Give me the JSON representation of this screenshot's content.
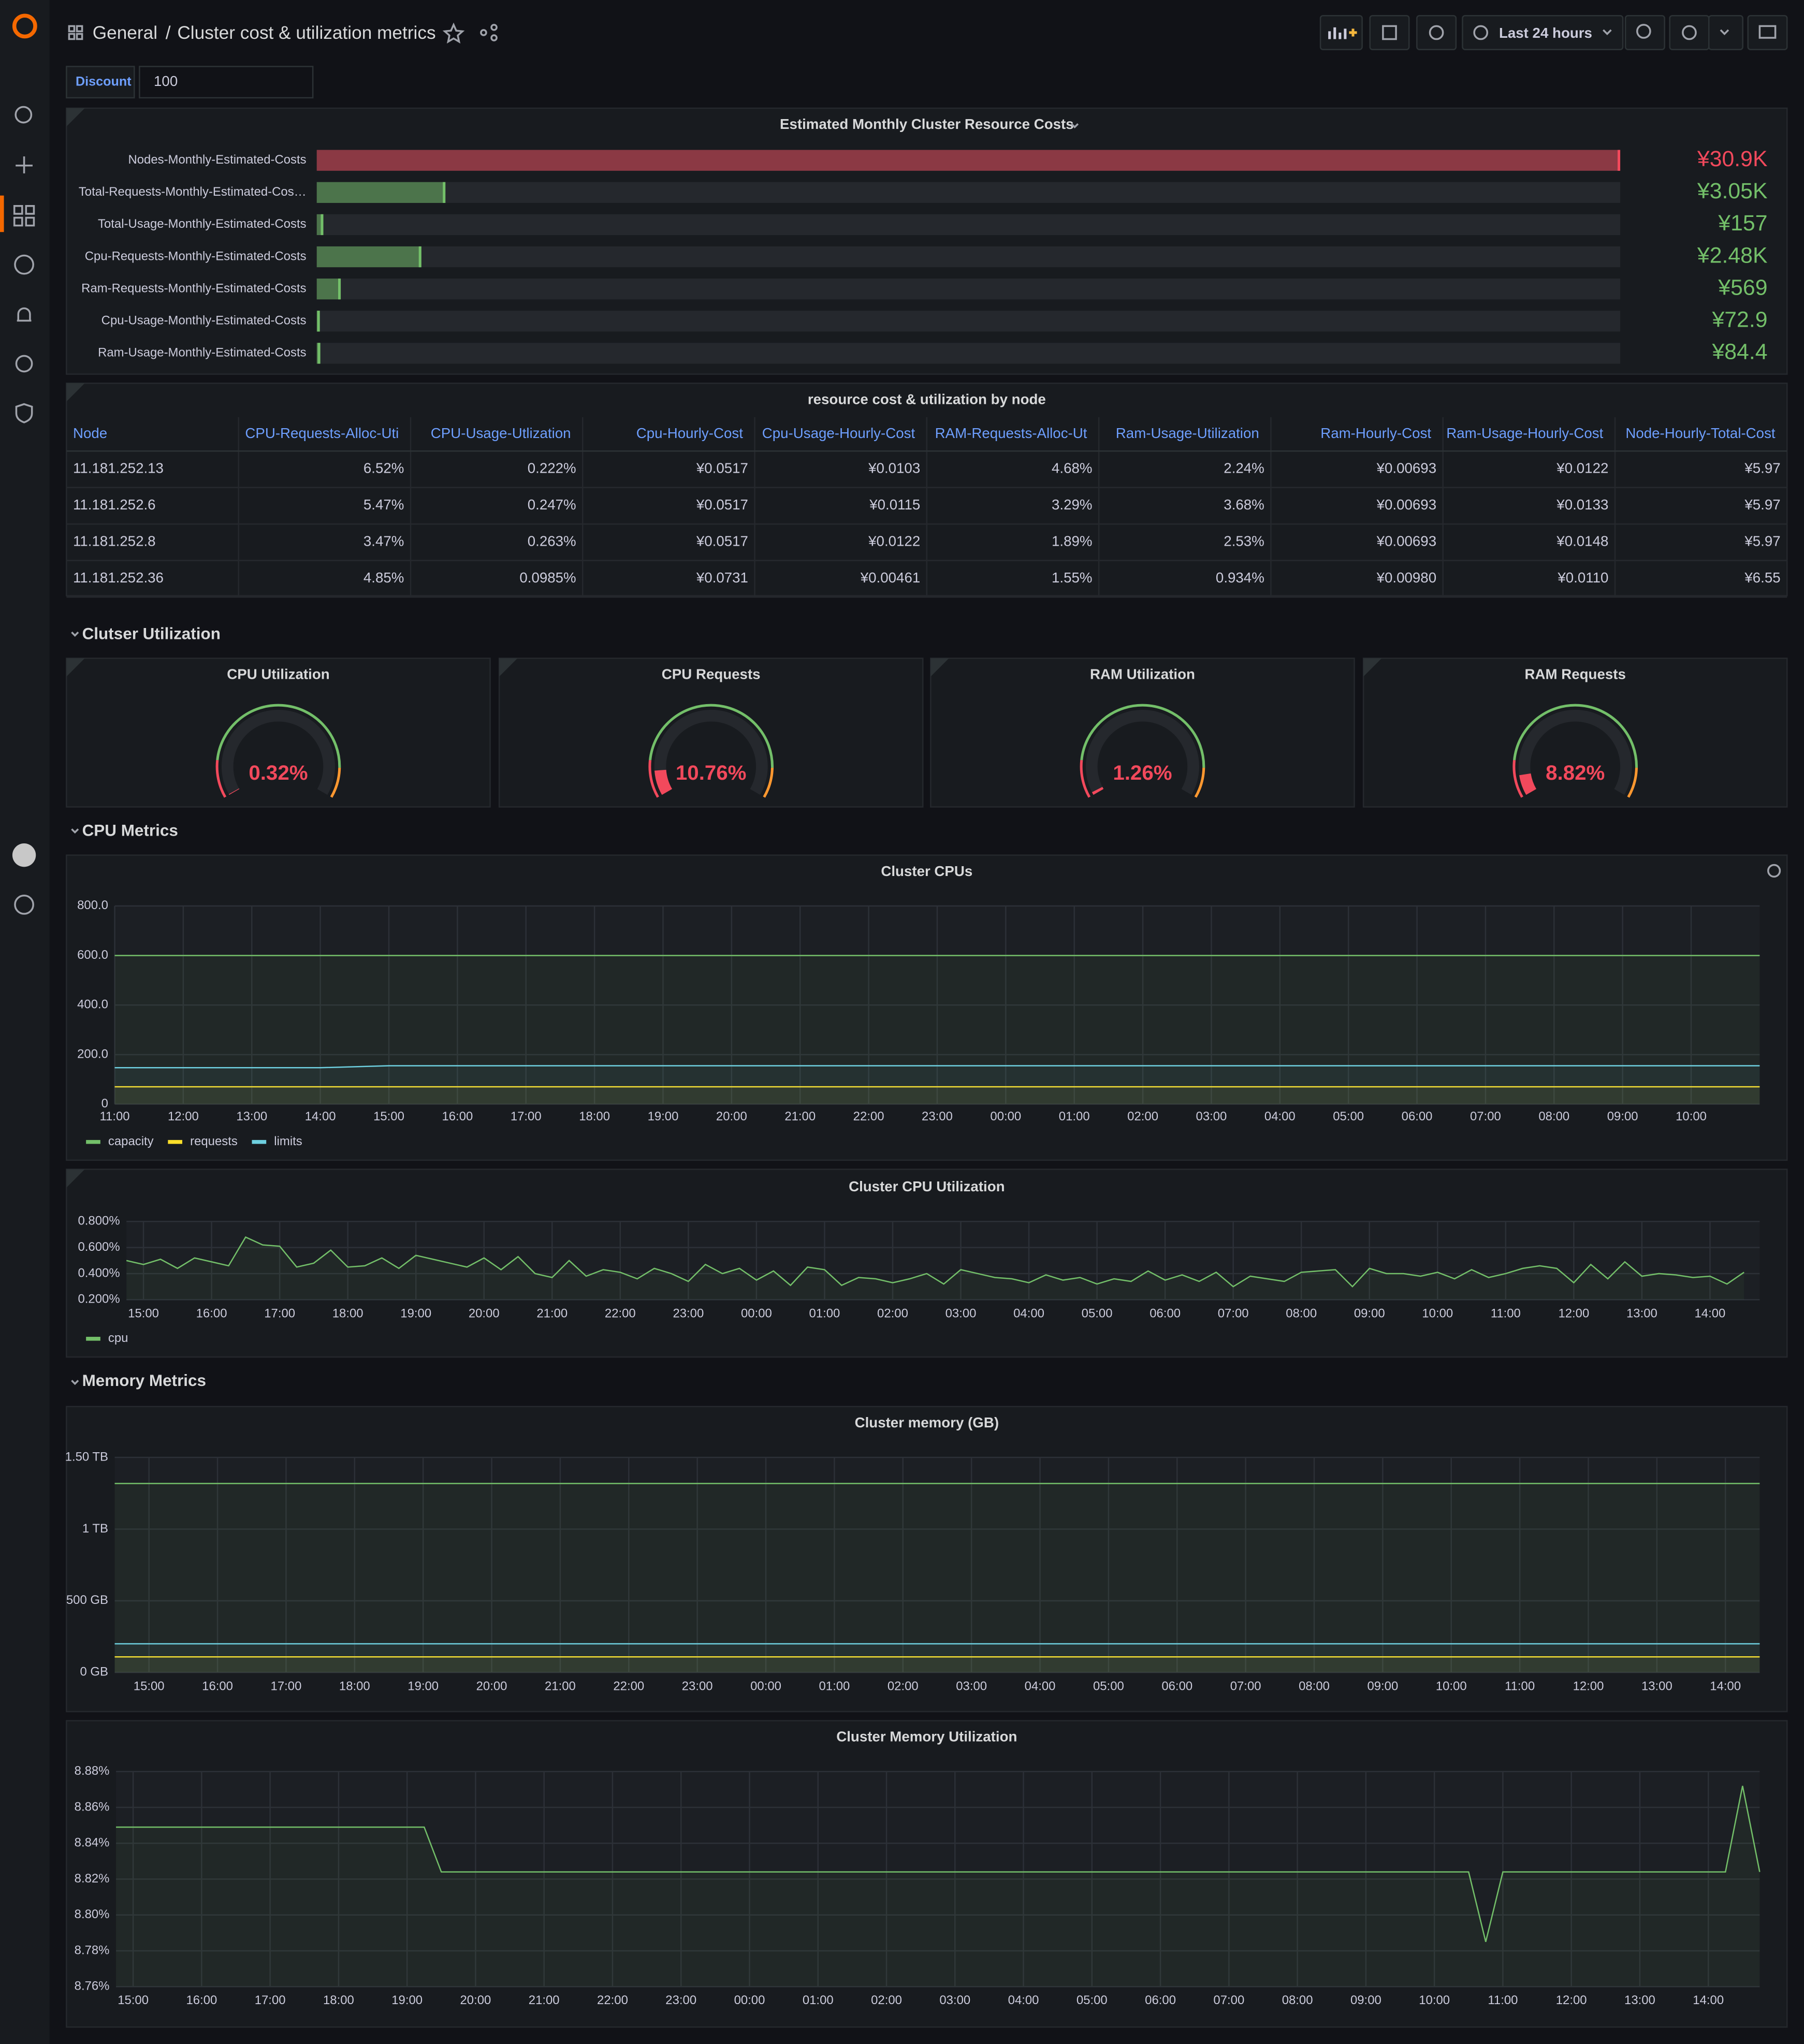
{
  "header": {
    "folder": "General",
    "title": "Cluster cost & utilization metrics",
    "time_range": "Last 24 hours"
  },
  "variable": {
    "label": "Discount",
    "value": "100"
  },
  "sections": [
    "Clutser Utilization",
    "CPU Metrics",
    "Memory Metrics"
  ],
  "table": {
    "title": "resource cost & utilization by node",
    "columns": [
      "Node",
      "CPU-Requests-Alloc-Uti",
      "CPU-Usage-Utlization",
      "Cpu-Hourly-Cost",
      "Cpu-Usage-Hourly-Cost",
      "RAM-Requests-Alloc-Ut",
      "Ram-Usage-Utilization",
      "Ram-Hourly-Cost",
      "Ram-Usage-Hourly-Cost",
      "Node-Hourly-Total-Cost"
    ],
    "rows": [
      [
        "11.181.252.13",
        "6.52%",
        "0.222%",
        "¥0.0517",
        "¥0.0103",
        "4.68%",
        "2.24%",
        "¥0.00693",
        "¥0.0122",
        "¥5.97"
      ],
      [
        "11.181.252.6",
        "5.47%",
        "0.247%",
        "¥0.0517",
        "¥0.0115",
        "3.29%",
        "3.68%",
        "¥0.00693",
        "¥0.0133",
        "¥5.97"
      ],
      [
        "11.181.252.8",
        "3.47%",
        "0.263%",
        "¥0.0517",
        "¥0.0122",
        "1.89%",
        "2.53%",
        "¥0.00693",
        "¥0.0148",
        "¥5.97"
      ],
      [
        "11.181.252.36",
        "4.85%",
        "0.0985%",
        "¥0.0731",
        "¥0.00461",
        "1.55%",
        "0.934%",
        "¥0.00980",
        "¥0.0110",
        "¥6.55"
      ]
    ]
  },
  "chart_data": [
    {
      "type": "bargauge",
      "title": "Estimated Monthly Cluster Resource Costs",
      "categories": [
        "Nodes-Monthly-Estimated-Costs",
        "Total-Requests-Monthly-Estimated-Cos…",
        "Total-Usage-Monthly-Estimated-Costs",
        "Cpu-Requests-Monthly-Estimated-Costs",
        "Ram-Requests-Monthly-Estimated-Costs",
        "Cpu-Usage-Monthly-Estimated-Costs",
        "Ram-Usage-Monthly-Estimated-Costs"
      ],
      "values": [
        30900,
        3050,
        157,
        2480,
        569,
        72.9,
        84.4
      ],
      "value_labels": [
        "¥30.9K",
        "¥3.05K",
        "¥157",
        "¥2.48K",
        "¥569",
        "¥72.9",
        "¥84.4"
      ],
      "colors": [
        "#F2495C",
        "#73BF69",
        "#73BF69",
        "#73BF69",
        "#73BF69",
        "#73BF69",
        "#73BF69"
      ]
    },
    {
      "type": "gauge",
      "title": "CPU Utilization",
      "value": 0.32,
      "value_label": "0.32%",
      "lim": [
        0,
        100
      ],
      "color": "#F2495C"
    },
    {
      "type": "gauge",
      "title": "CPU Requests",
      "value": 10.76,
      "value_label": "10.76%",
      "lim": [
        0,
        100
      ],
      "color": "#F2495C"
    },
    {
      "type": "gauge",
      "title": "RAM Utilization",
      "value": 1.26,
      "value_label": "1.26%",
      "lim": [
        0,
        100
      ],
      "color": "#F2495C"
    },
    {
      "type": "gauge",
      "title": "RAM Requests",
      "value": 8.82,
      "value_label": "8.82%",
      "lim": [
        0,
        100
      ],
      "color": "#F2495C"
    },
    {
      "type": "line",
      "title": "Cluster CPUs",
      "categories": [
        "11:00",
        "12:00",
        "13:00",
        "14:00",
        "15:00",
        "16:00",
        "17:00",
        "18:00",
        "19:00",
        "20:00",
        "21:00",
        "22:00",
        "23:00",
        "00:00",
        "01:00",
        "02:00",
        "03:00",
        "04:00",
        "05:00",
        "06:00",
        "07:00",
        "08:00",
        "09:00",
        "10:00",
        null
      ],
      "ylim": [
        0,
        800
      ],
      "yticks": [
        0,
        {
          "value": 200,
          "label": "200.0"
        },
        {
          "value": 400,
          "label": "400.0"
        },
        {
          "value": 600,
          "label": "600.0"
        },
        {
          "value": 800,
          "label": "800.0"
        }
      ],
      "grid": true,
      "series": [
        {
          "name": "capacity",
          "color": "#73BF69",
          "values": [
            600,
            600,
            600,
            600,
            600,
            600,
            600,
            600,
            600,
            600,
            600,
            600,
            600,
            600,
            600,
            600,
            600,
            600,
            600,
            600,
            600,
            600,
            600,
            600,
            600
          ]
        },
        {
          "name": "requests",
          "color": "#FADE2A",
          "values": [
            70,
            70,
            70,
            70,
            70,
            70,
            70,
            70,
            70,
            70,
            70,
            70,
            70,
            70,
            70,
            70,
            70,
            70,
            70,
            70,
            70,
            70,
            70,
            70,
            70
          ]
        },
        {
          "name": "limits",
          "color": "#6ED0E0",
          "values": [
            147,
            147,
            147,
            147,
            155,
            155,
            155,
            155,
            155,
            155,
            155,
            155,
            155,
            155,
            155,
            155,
            155,
            155,
            155,
            155,
            155,
            155,
            155,
            155,
            155
          ]
        }
      ]
    },
    {
      "type": "line",
      "title": "Cluster CPU Utilization",
      "categories": [
        null,
        "15:00",
        null,
        null,
        null,
        "16:00",
        null,
        null,
        null,
        "17:00",
        null,
        null,
        null,
        "18:00",
        null,
        null,
        null,
        "19:00",
        null,
        null,
        null,
        "20:00",
        null,
        null,
        null,
        "21:00",
        null,
        null,
        null,
        "22:00",
        null,
        null,
        null,
        "23:00",
        null,
        null,
        null,
        "00:00",
        null,
        null,
        null,
        "01:00",
        null,
        null,
        null,
        "02:00",
        null,
        null,
        null,
        "03:00",
        null,
        null,
        null,
        "04:00",
        null,
        null,
        null,
        "05:00",
        null,
        null,
        null,
        "06:00",
        null,
        null,
        null,
        "07:00",
        null,
        null,
        null,
        "08:00",
        null,
        null,
        null,
        "09:00",
        null,
        null,
        null,
        "10:00",
        null,
        null,
        null,
        "11:00",
        null,
        null,
        null,
        "12:00",
        null,
        null,
        null,
        "13:00",
        null,
        null,
        null,
        "14:00",
        null,
        null
      ],
      "ylim": [
        0.2,
        0.8
      ],
      "yticks": [
        {
          "value": 0.2,
          "label": "0.200%"
        },
        {
          "value": 0.4,
          "label": "0.400%"
        },
        {
          "value": 0.6,
          "label": "0.600%"
        },
        {
          "value": 0.8,
          "label": "0.800%"
        }
      ],
      "grid": true,
      "series": [
        {
          "name": "cpu",
          "color": "#73BF69",
          "values": [
            0.5,
            0.47,
            0.51,
            0.44,
            0.52,
            0.49,
            0.46,
            0.68,
            0.62,
            0.61,
            0.45,
            0.48,
            0.58,
            0.45,
            0.46,
            0.52,
            0.44,
            0.54,
            0.51,
            0.48,
            0.45,
            0.52,
            0.43,
            0.53,
            0.4,
            0.37,
            0.5,
            0.38,
            0.43,
            0.41,
            0.36,
            0.44,
            0.4,
            0.34,
            0.47,
            0.4,
            0.44,
            0.35,
            0.42,
            0.31,
            0.45,
            0.43,
            0.31,
            0.37,
            0.36,
            0.33,
            0.36,
            0.4,
            0.32,
            0.43,
            0.4,
            0.37,
            0.36,
            0.33,
            0.39,
            0.35,
            0.37,
            0.32,
            0.36,
            0.34,
            0.42,
            0.35,
            0.39,
            0.34,
            0.41,
            0.3,
            0.38,
            0.36,
            0.34,
            0.41,
            0.42,
            0.43,
            0.3,
            0.44,
            0.4,
            0.4,
            0.38,
            0.41,
            0.36,
            0.43,
            0.37,
            0.4,
            0.44,
            0.46,
            0.44,
            0.33,
            0.47,
            0.36,
            0.49,
            0.38,
            0.4,
            0.39,
            0.37,
            0.38,
            0.32,
            0.41
          ]
        }
      ]
    },
    {
      "type": "line",
      "title": "Cluster memory (GB)",
      "categories": [
        null,
        "15:00",
        null,
        "16:00",
        null,
        "17:00",
        null,
        "18:00",
        null,
        "19:00",
        null,
        "20:00",
        null,
        "21:00",
        null,
        "22:00",
        null,
        "23:00",
        null,
        "00:00",
        null,
        "01:00",
        null,
        "02:00",
        null,
        "03:00",
        null,
        "04:00",
        null,
        "05:00",
        null,
        "06:00",
        null,
        "07:00",
        null,
        "08:00",
        null,
        "09:00",
        null,
        "10:00",
        null,
        "11:00",
        null,
        "12:00",
        null,
        "13:00",
        null,
        "14:00",
        null
      ],
      "ylim": [
        0,
        1500
      ],
      "yticks": [
        {
          "value": 0,
          "label": "0 GB"
        },
        {
          "value": 500,
          "label": "500 GB"
        },
        {
          "value": 1000,
          "label": "1 TB"
        },
        {
          "value": 1500,
          "label": "1.50 TB"
        }
      ],
      "grid": true,
      "series": [
        {
          "color": "#73BF69",
          "values": [
            1318,
            1318,
            1318,
            1318,
            1318,
            1318,
            1318,
            1318,
            1318,
            1318,
            1318,
            1318,
            1318,
            1318,
            1318,
            1318,
            1318,
            1318,
            1318,
            1318,
            1318,
            1318,
            1318,
            1318,
            1318,
            1318,
            1318,
            1318,
            1318,
            1318,
            1318,
            1318,
            1318,
            1318,
            1318,
            1318,
            1318,
            1318,
            1318,
            1318,
            1318,
            1318,
            1318,
            1318,
            1318,
            1318,
            1318,
            1318,
            1318
          ]
        },
        {
          "color": "#FADE2A",
          "values": [
            109,
            109,
            109,
            109,
            109,
            109,
            109,
            109,
            109,
            109,
            109,
            109,
            109,
            109,
            109,
            109,
            109,
            109,
            109,
            109,
            109,
            109,
            109,
            109,
            109,
            109,
            109,
            109,
            109,
            109,
            109,
            109,
            109,
            109,
            109,
            109,
            109,
            109,
            109,
            109,
            109,
            109,
            109,
            109,
            109,
            109,
            109,
            109,
            109
          ]
        },
        {
          "color": "#6ED0E0",
          "values": [
            200,
            200,
            200,
            200,
            200,
            200,
            200,
            200,
            200,
            200,
            200,
            200,
            200,
            200,
            200,
            200,
            200,
            200,
            200,
            200,
            200,
            200,
            200,
            200,
            200,
            200,
            200,
            200,
            200,
            200,
            200,
            200,
            200,
            200,
            200,
            200,
            200,
            200,
            200,
            200,
            200,
            200,
            200,
            200,
            200,
            200,
            200,
            200,
            200
          ]
        }
      ]
    },
    {
      "type": "line",
      "title": "Cluster Memory Utilization",
      "categories": [
        null,
        "15:00",
        null,
        null,
        null,
        "16:00",
        null,
        null,
        null,
        "17:00",
        null,
        null,
        null,
        "18:00",
        null,
        null,
        null,
        "19:00",
        null,
        null,
        null,
        "20:00",
        null,
        null,
        null,
        "21:00",
        null,
        null,
        null,
        "22:00",
        null,
        null,
        null,
        "23:00",
        null,
        null,
        null,
        "00:00",
        null,
        null,
        null,
        "01:00",
        null,
        null,
        null,
        "02:00",
        null,
        null,
        null,
        "03:00",
        null,
        null,
        null,
        "04:00",
        null,
        null,
        null,
        "05:00",
        null,
        null,
        null,
        "06:00",
        null,
        null,
        null,
        "07:00",
        null,
        null,
        null,
        "08:00",
        null,
        null,
        null,
        "09:00",
        null,
        null,
        null,
        "10:00",
        null,
        null,
        null,
        "11:00",
        null,
        null,
        null,
        "12:00",
        null,
        null,
        null,
        "13:00",
        null,
        null,
        null,
        "14:00",
        null,
        null,
        null
      ],
      "ylim": [
        8.76,
        8.88
      ],
      "yticks": [
        {
          "value": 8.76,
          "label": "8.76%"
        },
        {
          "value": 8.78,
          "label": "8.78%"
        },
        {
          "value": 8.8,
          "label": "8.80%"
        },
        {
          "value": 8.82,
          "label": "8.82%"
        },
        {
          "value": 8.84,
          "label": "8.84%"
        },
        {
          "value": 8.86,
          "label": "8.86%"
        },
        {
          "value": 8.88,
          "label": "8.88%"
        }
      ],
      "grid": true,
      "series": [
        {
          "color": "#73BF69",
          "values": [
            8.849,
            8.849,
            8.849,
            8.849,
            8.849,
            8.849,
            8.849,
            8.849,
            8.849,
            8.849,
            8.849,
            8.849,
            8.849,
            8.849,
            8.849,
            8.849,
            8.849,
            8.849,
            8.849,
            8.824,
            8.824,
            8.824,
            8.824,
            8.824,
            8.824,
            8.824,
            8.824,
            8.824,
            8.824,
            8.824,
            8.824,
            8.824,
            8.824,
            8.824,
            8.824,
            8.824,
            8.824,
            8.824,
            8.824,
            8.824,
            8.824,
            8.824,
            8.824,
            8.824,
            8.824,
            8.824,
            8.824,
            8.824,
            8.824,
            8.824,
            8.824,
            8.824,
            8.824,
            8.824,
            8.824,
            8.824,
            8.824,
            8.824,
            8.824,
            8.824,
            8.824,
            8.824,
            8.824,
            8.824,
            8.824,
            8.824,
            8.824,
            8.824,
            8.824,
            8.824,
            8.824,
            8.824,
            8.824,
            8.824,
            8.824,
            8.824,
            8.824,
            8.824,
            8.824,
            8.824,
            8.785,
            8.824,
            8.824,
            8.824,
            8.824,
            8.824,
            8.824,
            8.824,
            8.824,
            8.824,
            8.824,
            8.824,
            8.824,
            8.824,
            8.824,
            8.872,
            8.824
          ]
        }
      ]
    }
  ]
}
